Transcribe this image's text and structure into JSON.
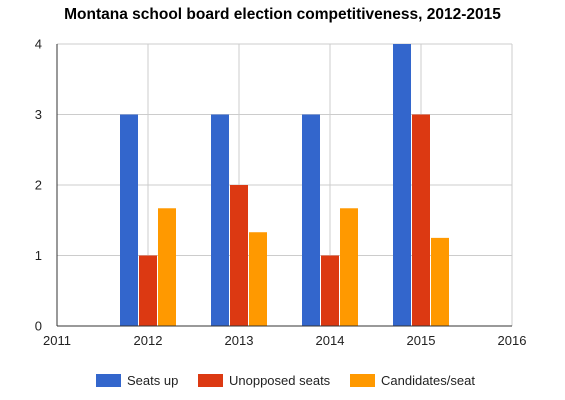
{
  "chart_data": {
    "type": "bar",
    "title": "Montana school board election competitiveness, 2012-2015",
    "xlabel": "",
    "ylabel": "",
    "x": [
      2012,
      2013,
      2014,
      2015
    ],
    "xlim": [
      2011,
      2016
    ],
    "x_ticks": [
      "2011",
      "2012",
      "2013",
      "2014",
      "2015",
      "2016"
    ],
    "ylim": [
      0,
      4
    ],
    "y_ticks": [
      "0",
      "1",
      "2",
      "3",
      "4"
    ],
    "grid": true,
    "legend_position": "bottom",
    "series": [
      {
        "name": "Seats up",
        "color": "#3366cc",
        "values": [
          3,
          3,
          3,
          4
        ]
      },
      {
        "name": "Unopposed seats",
        "color": "#dc3912",
        "values": [
          1,
          2,
          1,
          3
        ]
      },
      {
        "name": "Candidates/seat",
        "color": "#ff9900",
        "values": [
          1.67,
          1.33,
          1.67,
          1.25
        ]
      }
    ]
  }
}
